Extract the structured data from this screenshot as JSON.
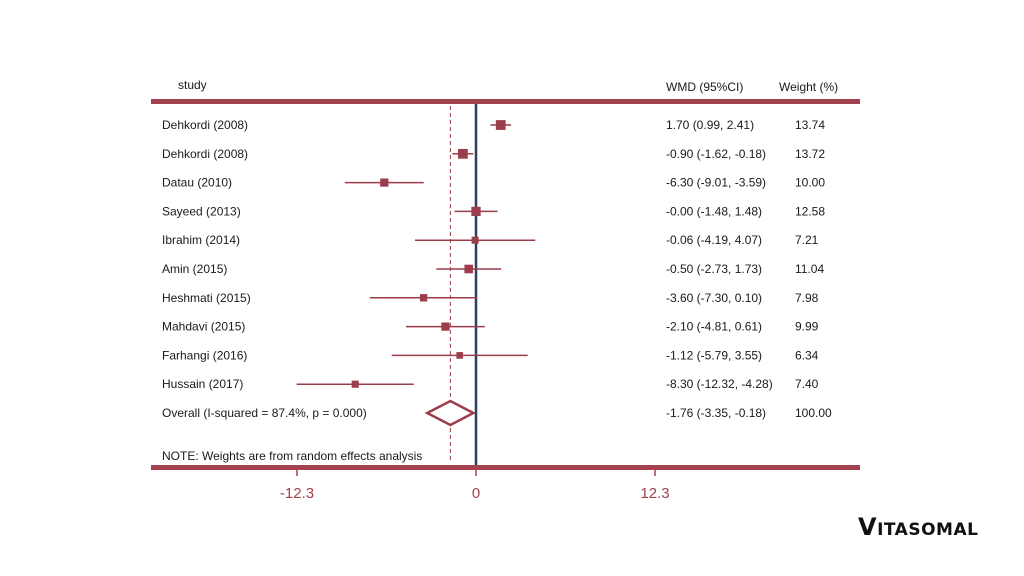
{
  "chart_data": {
    "type": "forest",
    "headers": {
      "study": "study",
      "effect": "WMD (95%CI)",
      "weight": "Weight (%)"
    },
    "studies": [
      {
        "label": "Dehkordi (2008)",
        "wmd": 1.7,
        "lo": 0.99,
        "hi": 2.41,
        "ci_text": "1.70 (0.99, 2.41)",
        "weight": "13.74"
      },
      {
        "label": "Dehkordi (2008)",
        "wmd": -0.9,
        "lo": -1.62,
        "hi": -0.18,
        "ci_text": "-0.90 (-1.62, -0.18)",
        "weight": "13.72"
      },
      {
        "label": "Datau (2010)",
        "wmd": -6.3,
        "lo": -9.01,
        "hi": -3.59,
        "ci_text": "-6.30 (-9.01, -3.59)",
        "weight": "10.00"
      },
      {
        "label": "Sayeed (2013)",
        "wmd": -0.0,
        "lo": -1.48,
        "hi": 1.48,
        "ci_text": "-0.00 (-1.48, 1.48)",
        "weight": "12.58"
      },
      {
        "label": "Ibrahim (2014)",
        "wmd": -0.06,
        "lo": -4.19,
        "hi": 4.07,
        "ci_text": "-0.06 (-4.19, 4.07)",
        "weight": "7.21"
      },
      {
        "label": "Amin (2015)",
        "wmd": -0.5,
        "lo": -2.73,
        "hi": 1.73,
        "ci_text": "-0.50 (-2.73, 1.73)",
        "weight": "11.04"
      },
      {
        "label": "Heshmati (2015)",
        "wmd": -3.6,
        "lo": -7.3,
        "hi": 0.1,
        "ci_text": "-3.60 (-7.30, 0.10)",
        "weight": "7.98"
      },
      {
        "label": "Mahdavi (2015)",
        "wmd": -2.1,
        "lo": -4.81,
        "hi": 0.61,
        "ci_text": "-2.10 (-4.81, 0.61)",
        "weight": "9.99"
      },
      {
        "label": "Farhangi (2016)",
        "wmd": -1.12,
        "lo": -5.79,
        "hi": 3.55,
        "ci_text": "-1.12 (-5.79, 3.55)",
        "weight": "6.34"
      },
      {
        "label": "Hussain (2017)",
        "wmd": -8.3,
        "lo": -12.32,
        "hi": -4.28,
        "ci_text": "-8.30 (-12.32, -4.28)",
        "weight": "7.40"
      }
    ],
    "overall": {
      "label": "Overall  (I-squared = 87.4%, p = 0.000)",
      "wmd": -1.76,
      "lo": -3.35,
      "hi": -0.18,
      "ci_text": "-1.76 (-3.35, -0.18)",
      "weight": "100.00"
    },
    "note": "NOTE: Weights are from random effects analysis",
    "x_ticks": [
      {
        "value": -12.3,
        "label": "-12.3"
      },
      {
        "value": 0,
        "label": "0"
      },
      {
        "value": 12.3,
        "label": "12.3"
      }
    ],
    "xlim": [
      -12.3,
      12.3
    ],
    "colors": {
      "marker": "#9b3d4a",
      "axis": "#a3424e",
      "zero_line": "#2b3f66",
      "text": "#1a1a1a"
    }
  },
  "brand": {
    "logo_first": "V",
    "logo_rest": "ITASOMAL"
  }
}
